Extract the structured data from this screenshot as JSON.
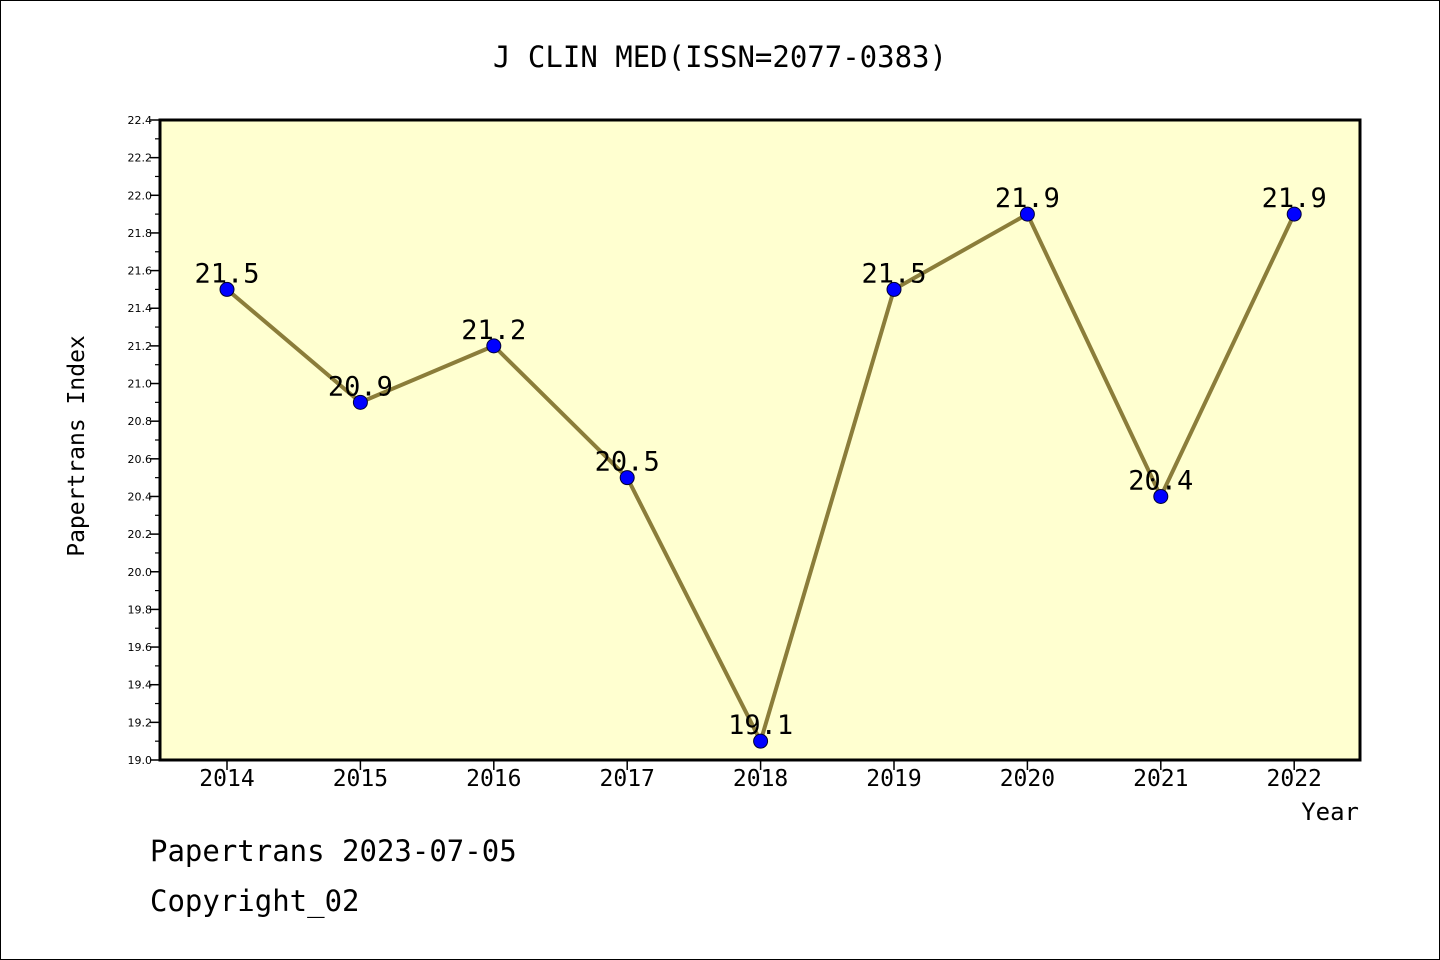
{
  "chart_data": {
    "type": "line",
    "title": "J CLIN MED(ISSN=2077-0383)",
    "xlabel": "Year",
    "ylabel": "Papertrans Index",
    "categories": [
      "2014",
      "2015",
      "2016",
      "2017",
      "2018",
      "2019",
      "2020",
      "2021",
      "2022"
    ],
    "series": [
      {
        "values": [
          21.5,
          20.9,
          21.2,
          20.5,
          19.1,
          21.5,
          21.9,
          20.4,
          21.9
        ]
      }
    ],
    "data_labels": [
      "21.5",
      "20.9",
      "21.2",
      "20.5",
      "19.1",
      "21.5",
      "21.9",
      "20.4",
      "21.9"
    ],
    "ylim": [
      19.0,
      22.4
    ],
    "yticks": [
      "19.0",
      "19.2",
      "19.4",
      "19.6",
      "19.8",
      "20.0",
      "20.2",
      "20.4",
      "20.6",
      "20.8",
      "21.0",
      "21.2",
      "21.4",
      "21.6",
      "21.8",
      "22.0",
      "22.2",
      "22.4"
    ],
    "grid": false,
    "colors": {
      "plot_background": "#ffffd0",
      "line": "#8b7d3a",
      "marker": "#0000ff"
    }
  },
  "footer": {
    "line1": "Papertrans 2023-07-05",
    "line2": "Copyright_02"
  }
}
